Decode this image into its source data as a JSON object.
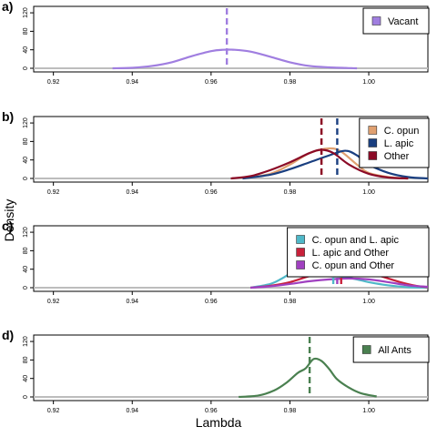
{
  "figure": {
    "ylabel": "Density",
    "xlabel": "Lambda"
  },
  "chart_data": [
    {
      "type": "line",
      "panel_label": "a)",
      "xlim": [
        0.915,
        1.015
      ],
      "ylim": [
        0,
        130
      ],
      "x_ticks": [
        0.92,
        0.94,
        0.96,
        0.98,
        1.0
      ],
      "x_tick_labels": [
        "0.92",
        "0.94",
        "0.96",
        "0.98",
        "1.00"
      ],
      "y_ticks": [
        0,
        40,
        80,
        120
      ],
      "y_tick_labels": [
        "0",
        "40",
        "80",
        "120"
      ],
      "legend_position": "top-right",
      "series": [
        {
          "name": "Vacant",
          "color": "#a07ee0",
          "mean": 0.964,
          "points": [
            [
              0.935,
              0
            ],
            [
              0.94,
              1
            ],
            [
              0.945,
              5
            ],
            [
              0.95,
              13
            ],
            [
              0.955,
              26
            ],
            [
              0.96,
              37
            ],
            [
              0.963,
              40
            ],
            [
              0.966,
              40
            ],
            [
              0.97,
              36
            ],
            [
              0.975,
              25
            ],
            [
              0.98,
              13
            ],
            [
              0.985,
              5
            ],
            [
              0.99,
              2
            ],
            [
              0.997,
              0
            ]
          ]
        }
      ]
    },
    {
      "type": "line",
      "panel_label": "b)",
      "xlim": [
        0.915,
        1.015
      ],
      "ylim": [
        0,
        130
      ],
      "x_ticks": [
        0.92,
        0.94,
        0.96,
        0.98,
        1.0
      ],
      "x_tick_labels": [
        "0.92",
        "0.94",
        "0.96",
        "0.98",
        "1.00"
      ],
      "y_ticks": [
        0,
        40,
        80,
        120
      ],
      "y_tick_labels": [
        "0",
        "40",
        "80",
        "120"
      ],
      "legend_position": "top-right",
      "series": [
        {
          "name": "C. opun",
          "color": "#e0a070",
          "mean": 0.988,
          "points": [
            [
              0.968,
              0
            ],
            [
              0.975,
              10
            ],
            [
              0.98,
              30
            ],
            [
              0.985,
              55
            ],
            [
              0.99,
              65
            ],
            [
              0.993,
              58
            ],
            [
              0.997,
              30
            ],
            [
              1.0,
              12
            ],
            [
              1.005,
              3
            ],
            [
              1.01,
              0
            ]
          ]
        },
        {
          "name": "L. apic",
          "color": "#1a3f80",
          "mean": 0.992,
          "points": [
            [
              0.968,
              0
            ],
            [
              0.975,
              8
            ],
            [
              0.98,
              20
            ],
            [
              0.985,
              35
            ],
            [
              0.99,
              50
            ],
            [
              0.994,
              60
            ],
            [
              0.997,
              50
            ],
            [
              1.0,
              30
            ],
            [
              1.005,
              12
            ],
            [
              1.01,
              3
            ],
            [
              1.015,
              0
            ]
          ]
        },
        {
          "name": "Other",
          "color": "#8b0a26",
          "mean": 0.988,
          "points": [
            [
              0.965,
              0
            ],
            [
              0.97,
              5
            ],
            [
              0.975,
              18
            ],
            [
              0.98,
              35
            ],
            [
              0.985,
              55
            ],
            [
              0.988,
              62
            ],
            [
              0.991,
              55
            ],
            [
              0.995,
              30
            ],
            [
              1.0,
              10
            ],
            [
              1.005,
              2
            ],
            [
              1.01,
              0
            ]
          ]
        }
      ]
    },
    {
      "type": "line",
      "panel_label": "c)",
      "xlim": [
        0.915,
        1.015
      ],
      "ylim": [
        0,
        130
      ],
      "x_ticks": [
        0.92,
        0.94,
        0.96,
        0.98,
        1.0
      ],
      "x_tick_labels": [
        "0.92",
        "0.94",
        "0.96",
        "0.98",
        "1.00"
      ],
      "y_ticks": [
        0,
        40,
        80,
        120
      ],
      "y_tick_labels": [
        "0",
        "40",
        "80",
        "120"
      ],
      "legend_position": "top-right",
      "series": [
        {
          "name": "C. opun and L. apic",
          "color": "#4fb8c8",
          "mean": 0.991,
          "points": [
            [
              0.97,
              0
            ],
            [
              0.975,
              8
            ],
            [
              0.978,
              20
            ],
            [
              0.981,
              35
            ],
            [
              0.984,
              40
            ],
            [
              0.987,
              32
            ],
            [
              0.99,
              25
            ],
            [
              0.993,
              24
            ],
            [
              0.997,
              18
            ],
            [
              1.0,
              12
            ],
            [
              1.005,
              5
            ],
            [
              1.01,
              1
            ],
            [
              1.015,
              0
            ]
          ]
        },
        {
          "name": "L. apic and Other",
          "color": "#c8203a",
          "mean": 0.993,
          "points": [
            [
              0.97,
              0
            ],
            [
              0.975,
              4
            ],
            [
              0.98,
              12
            ],
            [
              0.985,
              25
            ],
            [
              0.99,
              32
            ],
            [
              0.995,
              35
            ],
            [
              0.999,
              34
            ],
            [
              1.003,
              25
            ],
            [
              1.008,
              12
            ],
            [
              1.012,
              4
            ],
            [
              1.015,
              1
            ]
          ]
        },
        {
          "name": "C. opun and Other",
          "color": "#a040c0",
          "mean": 0.992,
          "points": [
            [
              0.97,
              0
            ],
            [
              0.975,
              3
            ],
            [
              0.98,
              8
            ],
            [
              0.985,
              14
            ],
            [
              0.99,
              18
            ],
            [
              0.995,
              20
            ],
            [
              1.0,
              18
            ],
            [
              1.005,
              12
            ],
            [
              1.01,
              5
            ],
            [
              1.015,
              2
            ]
          ]
        }
      ]
    },
    {
      "type": "line",
      "panel_label": "d)",
      "xlim": [
        0.915,
        1.015
      ],
      "ylim": [
        0,
        130
      ],
      "x_ticks": [
        0.92,
        0.94,
        0.96,
        0.98,
        1.0
      ],
      "x_tick_labels": [
        "0.92",
        "0.94",
        "0.96",
        "0.98",
        "1.00"
      ],
      "y_ticks": [
        0,
        40,
        80,
        120
      ],
      "y_tick_labels": [
        "0",
        "40",
        "80",
        "120"
      ],
      "legend_position": "top-right",
      "series": [
        {
          "name": "All Ants",
          "color": "#4a8050",
          "mean": 0.985,
          "points": [
            [
              0.967,
              0
            ],
            [
              0.972,
              3
            ],
            [
              0.976,
              14
            ],
            [
              0.979,
              30
            ],
            [
              0.982,
              52
            ],
            [
              0.984,
              62
            ],
            [
              0.986,
              82
            ],
            [
              0.988,
              78
            ],
            [
              0.99,
              60
            ],
            [
              0.992,
              38
            ],
            [
              0.995,
              20
            ],
            [
              0.998,
              8
            ],
            [
              1.002,
              1
            ]
          ]
        }
      ]
    }
  ]
}
